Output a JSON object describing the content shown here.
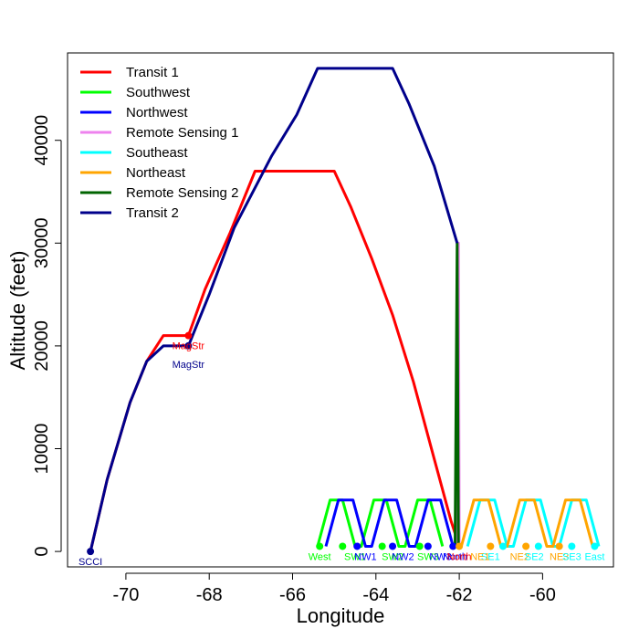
{
  "chart_data": {
    "type": "line",
    "title": "",
    "xlabel": "Longitude",
    "ylabel": "Altitude (feet)",
    "xlim": [
      -71.4,
      -58.3
    ],
    "ylim": [
      -1500,
      48500
    ],
    "xticks": [
      -70,
      -68,
      -66,
      -64,
      -62,
      -60
    ],
    "xtick_labels": [
      "-70",
      "-68",
      "-66",
      "-64",
      "-62",
      "-60"
    ],
    "yticks": [
      0,
      10000,
      20000,
      30000,
      40000
    ],
    "ytick_labels": [
      "0",
      "10000",
      "20000",
      "30000",
      "40000"
    ],
    "grid": false,
    "legend_position": "top-left",
    "series": [
      {
        "name": "Transit 1",
        "color": "#ff0000",
        "points": [
          [
            -70.85,
            0
          ],
          [
            -70.45,
            7000
          ],
          [
            -69.9,
            14500
          ],
          [
            -69.5,
            18500
          ],
          [
            -69.1,
            21000
          ],
          [
            -68.5,
            21000
          ],
          [
            -68.1,
            25500
          ],
          [
            -67.5,
            31000
          ],
          [
            -66.9,
            37000
          ],
          [
            -65.0,
            37000
          ],
          [
            -64.6,
            33500
          ],
          [
            -64.1,
            28500
          ],
          [
            -63.6,
            23000
          ],
          [
            -63.1,
            16500
          ],
          [
            -62.6,
            9000
          ],
          [
            -62.2,
            3000
          ],
          [
            -62.0,
            500
          ]
        ]
      },
      {
        "name": "Southwest",
        "color": "#00ff00",
        "points": [
          [
            -65.4,
            500
          ],
          [
            -65.1,
            5000
          ],
          [
            -64.8,
            5000
          ],
          [
            -64.5,
            500
          ],
          [
            -64.35,
            500
          ],
          [
            -64.05,
            5000
          ],
          [
            -63.75,
            5000
          ],
          [
            -63.45,
            500
          ],
          [
            -63.3,
            500
          ],
          [
            -63.0,
            5000
          ],
          [
            -62.7,
            5000
          ],
          [
            -62.4,
            500
          ]
        ]
      },
      {
        "name": "Northwest",
        "color": "#0000ff",
        "points": [
          [
            -65.2,
            500
          ],
          [
            -64.9,
            5000
          ],
          [
            -64.55,
            5000
          ],
          [
            -64.25,
            500
          ],
          [
            -64.1,
            500
          ],
          [
            -63.8,
            5000
          ],
          [
            -63.5,
            5000
          ],
          [
            -63.2,
            500
          ],
          [
            -63.05,
            500
          ],
          [
            -62.75,
            5000
          ],
          [
            -62.45,
            5000
          ],
          [
            -62.15,
            500
          ]
        ]
      },
      {
        "name": "Remote Sensing 1",
        "color": "#ee82ee",
        "points": [
          [
            -62.05,
            500
          ],
          [
            -62.02,
            30000
          ],
          [
            -62.0,
            500
          ]
        ]
      },
      {
        "name": "Southeast",
        "color": "#00ffff",
        "points": [
          [
            -61.8,
            500
          ],
          [
            -61.5,
            5000
          ],
          [
            -61.15,
            5000
          ],
          [
            -60.85,
            500
          ],
          [
            -60.7,
            500
          ],
          [
            -60.4,
            5000
          ],
          [
            -60.05,
            5000
          ],
          [
            -59.75,
            500
          ],
          [
            -59.6,
            500
          ],
          [
            -59.3,
            5000
          ],
          [
            -58.95,
            5000
          ],
          [
            -58.65,
            500
          ]
        ]
      },
      {
        "name": "Northeast",
        "color": "#ffa500",
        "points": [
          [
            -61.95,
            500
          ],
          [
            -61.65,
            5000
          ],
          [
            -61.3,
            5000
          ],
          [
            -61.0,
            500
          ],
          [
            -60.85,
            500
          ],
          [
            -60.55,
            5000
          ],
          [
            -60.2,
            5000
          ],
          [
            -59.9,
            500
          ],
          [
            -59.75,
            500
          ],
          [
            -59.45,
            5000
          ],
          [
            -59.1,
            5000
          ],
          [
            -58.8,
            500
          ]
        ]
      },
      {
        "name": "Remote Sensing 2",
        "color": "#006400",
        "points": [
          [
            -62.1,
            500
          ],
          [
            -62.05,
            30000
          ],
          [
            -62.02,
            500
          ]
        ]
      },
      {
        "name": "Transit 2",
        "color": "#00008b",
        "points": [
          [
            -70.85,
            0
          ],
          [
            -70.45,
            7000
          ],
          [
            -69.9,
            14500
          ],
          [
            -69.5,
            18500
          ],
          [
            -69.1,
            20000
          ],
          [
            -68.5,
            20000
          ],
          [
            -68.0,
            25000
          ],
          [
            -67.4,
            31500
          ],
          [
            -66.5,
            38500
          ],
          [
            -65.9,
            42500
          ],
          [
            -65.4,
            47000
          ],
          [
            -63.6,
            47000
          ],
          [
            -63.2,
            43500
          ],
          [
            -62.6,
            37500
          ],
          [
            -62.05,
            30000
          ]
        ]
      }
    ],
    "point_labels": [
      {
        "text": "SCCI",
        "x": -70.85,
        "y": 0,
        "color": "#00008b",
        "dy": 1
      },
      {
        "text": "MagStr",
        "x": -68.5,
        "y": 21000,
        "color": "#ff0000",
        "dy": 1
      },
      {
        "text": "MagStr",
        "x": -68.5,
        "y": 20000,
        "color": "#00008b",
        "dy": 2
      },
      {
        "text": "West",
        "x": -65.35,
        "y": 500,
        "color": "#00ff00",
        "dy": 1
      },
      {
        "text": "SW1",
        "x": -64.5,
        "y": 500,
        "color": "#00ff00",
        "dy": 1
      },
      {
        "text": "NW1",
        "x": -64.25,
        "y": 500,
        "color": "#0000ff",
        "dy": 1
      },
      {
        "text": "SW2",
        "x": -63.6,
        "y": 500,
        "color": "#00ff00",
        "dy": 1
      },
      {
        "text": "NW2",
        "x": -63.35,
        "y": 500,
        "color": "#0000ff",
        "dy": 1
      },
      {
        "text": "SW3",
        "x": -62.75,
        "y": 500,
        "color": "#00ff00",
        "dy": 1
      },
      {
        "text": "NW3",
        "x": -62.45,
        "y": 500,
        "color": "#0000ff",
        "dy": 1
      },
      {
        "text": "North",
        "x": -62.1,
        "y": 500,
        "color": "#0000ff",
        "dy": 1
      },
      {
        "text": "North",
        "x": -62.0,
        "y": 500,
        "color": "#ff0000",
        "dy": 1
      },
      {
        "text": "SE1",
        "x": -61.25,
        "y": 500,
        "color": "#00ffff",
        "dy": 1
      },
      {
        "text": "NE1",
        "x": -61.5,
        "y": 500,
        "color": "#ffa500",
        "dy": 1
      },
      {
        "text": "NE2",
        "x": -60.55,
        "y": 500,
        "color": "#ffa500",
        "dy": 1
      },
      {
        "text": "SE2",
        "x": -60.2,
        "y": 500,
        "color": "#00ffff",
        "dy": 1
      },
      {
        "text": "NE3",
        "x": -59.6,
        "y": 500,
        "color": "#ffa500",
        "dy": 1
      },
      {
        "text": "SE3",
        "x": -59.3,
        "y": 500,
        "color": "#00ffff",
        "dy": 1
      },
      {
        "text": "East",
        "x": -58.75,
        "y": 500,
        "color": "#00ffff",
        "dy": 1
      }
    ],
    "markers": [
      {
        "x": -70.85,
        "y": 0,
        "color": "#00008b"
      },
      {
        "x": -68.5,
        "y": 21000,
        "color": "#ff0000"
      },
      {
        "x": -68.5,
        "y": 20000,
        "color": "#00008b"
      },
      {
        "x": -65.35,
        "y": 500,
        "color": "#00ff00"
      },
      {
        "x": -64.8,
        "y": 500,
        "color": "#00ff00"
      },
      {
        "x": -64.45,
        "y": 500,
        "color": "#0000ff"
      },
      {
        "x": -63.85,
        "y": 500,
        "color": "#00ff00"
      },
      {
        "x": -63.6,
        "y": 500,
        "color": "#0000ff"
      },
      {
        "x": -62.95,
        "y": 500,
        "color": "#00ff00"
      },
      {
        "x": -62.75,
        "y": 500,
        "color": "#0000ff"
      },
      {
        "x": -62.15,
        "y": 500,
        "color": "#0000ff"
      },
      {
        "x": -62.0,
        "y": 500,
        "color": "#ffa500"
      },
      {
        "x": -61.25,
        "y": 500,
        "color": "#ffa500"
      },
      {
        "x": -60.95,
        "y": 500,
        "color": "#00ffff"
      },
      {
        "x": -60.4,
        "y": 500,
        "color": "#ffa500"
      },
      {
        "x": -60.1,
        "y": 500,
        "color": "#00ffff"
      },
      {
        "x": -59.6,
        "y": 500,
        "color": "#ffa500"
      },
      {
        "x": -59.3,
        "y": 500,
        "color": "#00ffff"
      },
      {
        "x": -58.75,
        "y": 500,
        "color": "#00ffff"
      }
    ]
  }
}
